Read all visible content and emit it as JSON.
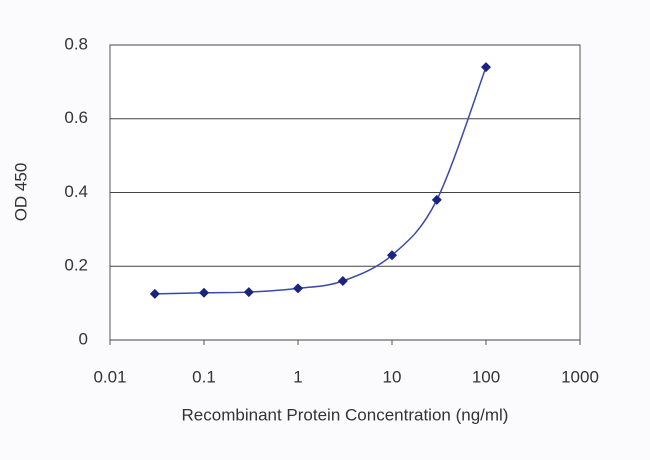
{
  "chart_data": {
    "type": "line",
    "x_label": "Recombinant Protein Concentration (ng/ml)",
    "y_label": "OD 450",
    "x_scale": "log",
    "x": [
      0.03,
      0.1,
      0.3,
      1,
      3,
      10,
      30,
      100
    ],
    "series": [
      {
        "color": "#1a237e",
        "values": [
          0.125,
          0.128,
          0.13,
          0.14,
          0.16,
          0.23,
          0.38,
          0.74
        ]
      }
    ],
    "xlim": [
      0.01,
      1000
    ],
    "xticks": [
      0.01,
      0.1,
      1,
      10,
      100,
      1000
    ],
    "ylim": [
      0,
      0.8
    ],
    "yticks": [
      0,
      0.2,
      0.4,
      0.6,
      0.8
    ],
    "grid": true
  }
}
